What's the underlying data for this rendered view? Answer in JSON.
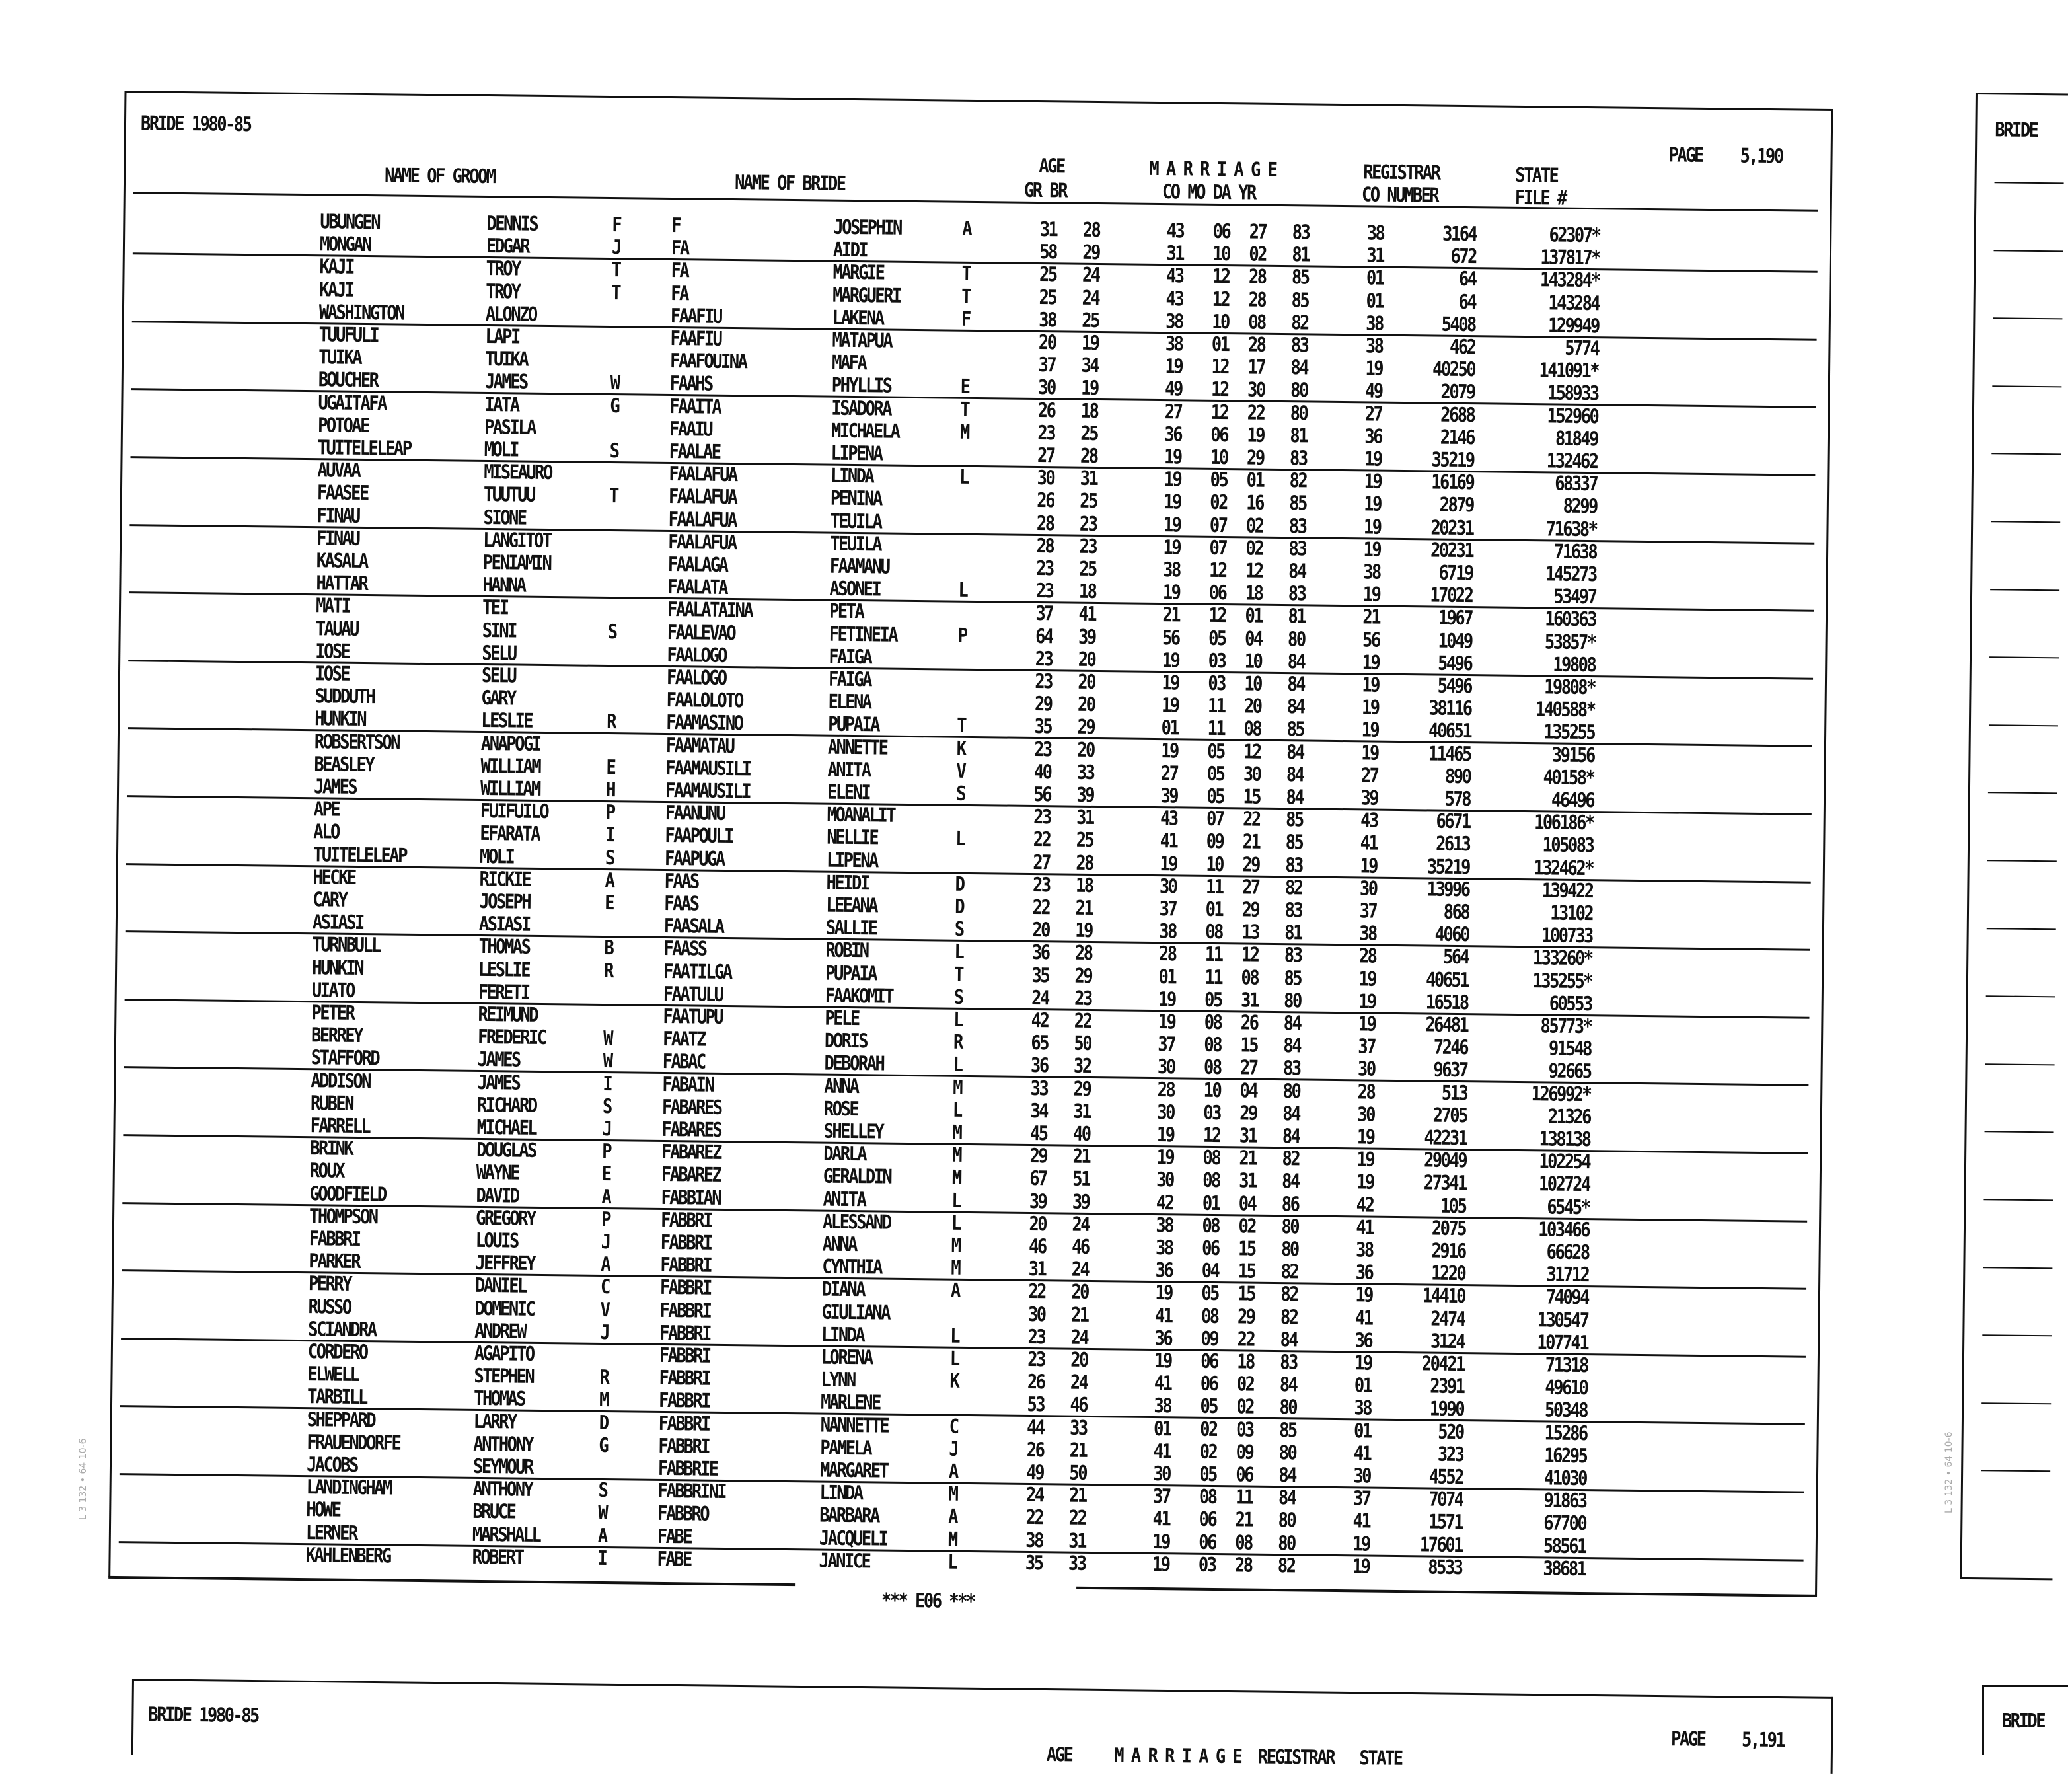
{
  "page1": {
    "title": "BRIDE 1980-85",
    "page_label": "PAGE",
    "page_number": "5,190",
    "headers": {
      "name_of_groom": "NAME OF GROOM",
      "name_of_bride": "NAME OF BRIDE",
      "age": "AGE",
      "gr_br": "GR  BR",
      "marriage": "M A R R I A G E",
      "co_mo_da_yr": "CO  MO DA YR",
      "registrar": "REGISTRAR",
      "co_number": "CO NUMBER",
      "state": "STATE",
      "file_no": "FILE #"
    },
    "footer": "*** E06 ***",
    "rows": [
      [
        "UBUNGEN",
        "DENNIS",
        "F",
        "F",
        "JOSEPHIN",
        "A",
        "31",
        "28",
        "43",
        "06",
        "27",
        "83",
        "38",
        "3164",
        "62307*"
      ],
      [
        "MONGAN",
        "EDGAR",
        "J",
        "FA",
        "AIDI",
        "",
        "58",
        "29",
        "31",
        "10",
        "02",
        "81",
        "31",
        "672",
        "137817*"
      ],
      [
        "KAJI",
        "TROY",
        "T",
        "FA",
        "MARGIE",
        "T",
        "25",
        "24",
        "43",
        "12",
        "28",
        "85",
        "01",
        "64",
        "143284*"
      ],
      [
        "KAJI",
        "TROY",
        "T",
        "FA",
        "MARGUERI",
        "T",
        "25",
        "24",
        "43",
        "12",
        "28",
        "85",
        "01",
        "64",
        "143284"
      ],
      [
        "WASHINGTON",
        "ALONZO",
        "",
        "FAAFIU",
        "LAKENA",
        "F",
        "38",
        "25",
        "38",
        "10",
        "08",
        "82",
        "38",
        "5408",
        "129949"
      ],
      [
        "TUUFULI",
        "LAPI",
        "",
        "FAAFIU",
        "MATAPUA",
        "",
        "20",
        "19",
        "38",
        "01",
        "28",
        "83",
        "38",
        "462",
        "5774"
      ],
      [
        "TUIKA",
        "TUIKA",
        "",
        "FAAFOUINA",
        "MAFA",
        "",
        "37",
        "34",
        "19",
        "12",
        "17",
        "84",
        "19",
        "40250",
        "141091*"
      ],
      [
        "BOUCHER",
        "JAMES",
        "W",
        "FAAHS",
        "PHYLLIS",
        "E",
        "30",
        "19",
        "49",
        "12",
        "30",
        "80",
        "49",
        "2079",
        "158933"
      ],
      [
        "UGAITAFA",
        "IATA",
        "G",
        "FAAITA",
        "ISADORA",
        "T",
        "26",
        "18",
        "27",
        "12",
        "22",
        "80",
        "27",
        "2688",
        "152960"
      ],
      [
        "POTOAE",
        "PASILA",
        "",
        "FAAIU",
        "MICHAELA",
        "M",
        "23",
        "25",
        "36",
        "06",
        "19",
        "81",
        "36",
        "2146",
        "81849"
      ],
      [
        "TUITELELEAP",
        "MOLI",
        "S",
        "FAALAE",
        "LIPENA",
        "",
        "27",
        "28",
        "19",
        "10",
        "29",
        "83",
        "19",
        "35219",
        "132462"
      ],
      [
        "AUVAA",
        "MISEAURO",
        "",
        "FAALAFUA",
        "LINDA",
        "L",
        "30",
        "31",
        "19",
        "05",
        "01",
        "82",
        "19",
        "16169",
        "68337"
      ],
      [
        "FAASEE",
        "TUUTUU",
        "T",
        "FAALAFUA",
        "PENINA",
        "",
        "26",
        "25",
        "19",
        "02",
        "16",
        "85",
        "19",
        "2879",
        "8299"
      ],
      [
        "FINAU",
        "SIONE",
        "",
        "FAALAFUA",
        "TEUILA",
        "",
        "28",
        "23",
        "19",
        "07",
        "02",
        "83",
        "19",
        "20231",
        "71638*"
      ],
      [
        "FINAU",
        "LANGITOT",
        "",
        "FAALAFUA",
        "TEUILA",
        "",
        "28",
        "23",
        "19",
        "07",
        "02",
        "83",
        "19",
        "20231",
        "71638"
      ],
      [
        "KASALA",
        "PENIAMIN",
        "",
        "FAALAGA",
        "FAAMANU",
        "",
        "23",
        "25",
        "38",
        "12",
        "12",
        "84",
        "38",
        "6719",
        "145273"
      ],
      [
        "HATTAR",
        "HANNA",
        "",
        "FAALATA",
        "ASONEI",
        "L",
        "23",
        "18",
        "19",
        "06",
        "18",
        "83",
        "19",
        "17022",
        "53497"
      ],
      [
        "MATI",
        "TEI",
        "",
        "FAALATAINA",
        "PETA",
        "",
        "37",
        "41",
        "21",
        "12",
        "01",
        "81",
        "21",
        "1967",
        "160363"
      ],
      [
        "TAUAU",
        "SINI",
        "S",
        "FAALEVAO",
        "FETINEIA",
        "P",
        "64",
        "39",
        "56",
        "05",
        "04",
        "80",
        "56",
        "1049",
        "53857*"
      ],
      [
        "IOSE",
        "SELU",
        "",
        "FAALOGO",
        "FAIGA",
        "",
        "23",
        "20",
        "19",
        "03",
        "10",
        "84",
        "19",
        "5496",
        "19808"
      ],
      [
        "IOSE",
        "SELU",
        "",
        "FAALOGO",
        "FAIGA",
        "",
        "23",
        "20",
        "19",
        "03",
        "10",
        "84",
        "19",
        "5496",
        "19808*"
      ],
      [
        "SUDDUTH",
        "GARY",
        "",
        "FAALOLOTO",
        "ELENA",
        "",
        "29",
        "20",
        "19",
        "11",
        "20",
        "84",
        "19",
        "38116",
        "140588*"
      ],
      [
        "HUNKIN",
        "LESLIE",
        "R",
        "FAAMASINO",
        "PUPAIA",
        "T",
        "35",
        "29",
        "01",
        "11",
        "08",
        "85",
        "19",
        "40651",
        "135255"
      ],
      [
        "ROBSERTSON",
        "ANAPOGI",
        "",
        "FAAMATAU",
        "ANNETTE",
        "K",
        "23",
        "20",
        "19",
        "05",
        "12",
        "84",
        "19",
        "11465",
        "39156"
      ],
      [
        "BEASLEY",
        "WILLIAM",
        "E",
        "FAAMAUSILI",
        "ANITA",
        "V",
        "40",
        "33",
        "27",
        "05",
        "30",
        "84",
        "27",
        "890",
        "40158*"
      ],
      [
        "JAMES",
        "WILLIAM",
        "H",
        "FAAMAUSILI",
        "ELENI",
        "S",
        "56",
        "39",
        "39",
        "05",
        "15",
        "84",
        "39",
        "578",
        "46496"
      ],
      [
        "APE",
        "FUIFUILO",
        "P",
        "FAANUNU",
        "MOANALIT",
        "",
        "23",
        "31",
        "43",
        "07",
        "22",
        "85",
        "43",
        "6671",
        "106186*"
      ],
      [
        "ALO",
        "EFARATA",
        "I",
        "FAAPOULI",
        "NELLIE",
        "L",
        "22",
        "25",
        "41",
        "09",
        "21",
        "85",
        "41",
        "2613",
        "105083"
      ],
      [
        "TUITELELEAP",
        "MOLI",
        "S",
        "FAAPUGA",
        "LIPENA",
        "",
        "27",
        "28",
        "19",
        "10",
        "29",
        "83",
        "19",
        "35219",
        "132462*"
      ],
      [
        "HECKE",
        "RICKIE",
        "A",
        "FAAS",
        "HEIDI",
        "D",
        "23",
        "18",
        "30",
        "11",
        "27",
        "82",
        "30",
        "13996",
        "139422"
      ],
      [
        "CARY",
        "JOSEPH",
        "E",
        "FAAS",
        "LEEANA",
        "D",
        "22",
        "21",
        "37",
        "01",
        "29",
        "83",
        "37",
        "868",
        "13102"
      ],
      [
        "ASIASI",
        "ASIASI",
        "",
        "FAASALA",
        "SALLIE",
        "S",
        "20",
        "19",
        "38",
        "08",
        "13",
        "81",
        "38",
        "4060",
        "100733"
      ],
      [
        "TURNBULL",
        "THOMAS",
        "B",
        "FAASS",
        "ROBIN",
        "L",
        "36",
        "28",
        "28",
        "11",
        "12",
        "83",
        "28",
        "564",
        "133260*"
      ],
      [
        "HUNKIN",
        "LESLIE",
        "R",
        "FAATILGA",
        "PUPAIA",
        "T",
        "35",
        "29",
        "01",
        "11",
        "08",
        "85",
        "19",
        "40651",
        "135255*"
      ],
      [
        "UIATO",
        "FERETI",
        "",
        "FAATULU",
        "FAAKOMIT",
        "S",
        "24",
        "23",
        "19",
        "05",
        "31",
        "80",
        "19",
        "16518",
        "60553"
      ],
      [
        "PETER",
        "REIMUND",
        "",
        "FAATUPU",
        "PELE",
        "L",
        "42",
        "22",
        "19",
        "08",
        "26",
        "84",
        "19",
        "26481",
        "85773*"
      ],
      [
        "BERREY",
        "FREDERIC",
        "W",
        "FAATZ",
        "DORIS",
        "R",
        "65",
        "50",
        "37",
        "08",
        "15",
        "84",
        "37",
        "7246",
        "91548"
      ],
      [
        "STAFFORD",
        "JAMES",
        "W",
        "FABAC",
        "DEBORAH",
        "L",
        "36",
        "32",
        "30",
        "08",
        "27",
        "83",
        "30",
        "9637",
        "92665"
      ],
      [
        "ADDISON",
        "JAMES",
        "I",
        "FABAIN",
        "ANNA",
        "M",
        "33",
        "29",
        "28",
        "10",
        "04",
        "80",
        "28",
        "513",
        "126992*"
      ],
      [
        "RUBEN",
        "RICHARD",
        "S",
        "FABARES",
        "ROSE",
        "L",
        "34",
        "31",
        "30",
        "03",
        "29",
        "84",
        "30",
        "2705",
        "21326"
      ],
      [
        "FARRELL",
        "MICHAEL",
        "J",
        "FABARES",
        "SHELLEY",
        "M",
        "45",
        "40",
        "19",
        "12",
        "31",
        "84",
        "19",
        "42231",
        "138138"
      ],
      [
        "BRINK",
        "DOUGLAS",
        "P",
        "FABAREZ",
        "DARLA",
        "M",
        "29",
        "21",
        "19",
        "08",
        "21",
        "82",
        "19",
        "29049",
        "102254"
      ],
      [
        "ROUX",
        "WAYNE",
        "E",
        "FABAREZ",
        "GERALDIN",
        "M",
        "67",
        "51",
        "30",
        "08",
        "31",
        "84",
        "19",
        "27341",
        "102724"
      ],
      [
        "GOODFIELD",
        "DAVID",
        "A",
        "FABBIAN",
        "ANITA",
        "L",
        "39",
        "39",
        "42",
        "01",
        "04",
        "86",
        "42",
        "105",
        "6545*"
      ],
      [
        "THOMPSON",
        "GREGORY",
        "P",
        "FABBRI",
        "ALESSAND",
        "L",
        "20",
        "24",
        "38",
        "08",
        "02",
        "80",
        "41",
        "2075",
        "103466"
      ],
      [
        "FABBRI",
        "LOUIS",
        "J",
        "FABBRI",
        "ANNA",
        "M",
        "46",
        "46",
        "38",
        "06",
        "15",
        "80",
        "38",
        "2916",
        "66628"
      ],
      [
        "PARKER",
        "JEFFREY",
        "A",
        "FABBRI",
        "CYNTHIA",
        "M",
        "31",
        "24",
        "36",
        "04",
        "15",
        "82",
        "36",
        "1220",
        "31712"
      ],
      [
        "PERRY",
        "DANIEL",
        "C",
        "FABBRI",
        "DIANA",
        "A",
        "22",
        "20",
        "19",
        "05",
        "15",
        "82",
        "19",
        "14410",
        "74094"
      ],
      [
        "RUSSO",
        "DOMENIC",
        "V",
        "FABBRI",
        "GIULIANA",
        "",
        "30",
        "21",
        "41",
        "08",
        "29",
        "82",
        "41",
        "2474",
        "130547"
      ],
      [
        "SCIANDRA",
        "ANDREW",
        "J",
        "FABBRI",
        "LINDA",
        "L",
        "23",
        "24",
        "36",
        "09",
        "22",
        "84",
        "36",
        "3124",
        "107741"
      ],
      [
        "CORDERO",
        "AGAPITO",
        "",
        "FABBRI",
        "LORENA",
        "L",
        "23",
        "20",
        "19",
        "06",
        "18",
        "83",
        "19",
        "20421",
        "71318"
      ],
      [
        "ELWELL",
        "STEPHEN",
        "R",
        "FABBRI",
        "LYNN",
        "K",
        "26",
        "24",
        "41",
        "06",
        "02",
        "84",
        "01",
        "2391",
        "49610"
      ],
      [
        "TARBILL",
        "THOMAS",
        "M",
        "FABBRI",
        "MARLENE",
        "",
        "53",
        "46",
        "38",
        "05",
        "02",
        "80",
        "38",
        "1990",
        "50348"
      ],
      [
        "SHEPPARD",
        "LARRY",
        "D",
        "FABBRI",
        "NANNETTE",
        "C",
        "44",
        "33",
        "01",
        "02",
        "03",
        "85",
        "01",
        "520",
        "15286"
      ],
      [
        "FRAUENDORFE",
        "ANTHONY",
        "G",
        "FABBRI",
        "PAMELA",
        "J",
        "26",
        "21",
        "41",
        "02",
        "09",
        "80",
        "41",
        "323",
        "16295"
      ],
      [
        "JACOBS",
        "SEYMOUR",
        "",
        "FABBRIE",
        "MARGARET",
        "A",
        "49",
        "50",
        "30",
        "05",
        "06",
        "84",
        "30",
        "4552",
        "41030"
      ],
      [
        "LANDINGHAM",
        "ANTHONY",
        "S",
        "FABBRINI",
        "LINDA",
        "M",
        "24",
        "21",
        "37",
        "08",
        "11",
        "84",
        "37",
        "7074",
        "91863"
      ],
      [
        "HOWE",
        "BRUCE",
        "W",
        "FABBRO",
        "BARBARA",
        "A",
        "22",
        "22",
        "41",
        "06",
        "21",
        "80",
        "41",
        "1571",
        "67700"
      ],
      [
        "LERNER",
        "MARSHALL",
        "A",
        "FABE",
        "JACQUELI",
        "M",
        "38",
        "31",
        "19",
        "06",
        "08",
        "80",
        "19",
        "17601",
        "58561"
      ],
      [
        "KAHLENBERG",
        "ROBERT",
        "I",
        "FABE",
        "JANICE",
        "L",
        "35",
        "33",
        "19",
        "03",
        "28",
        "82",
        "19",
        "8533",
        "38681"
      ]
    ]
  },
  "page2": {
    "title": "BRIDE 1980-85",
    "page_label": "PAGE",
    "page_number": "5,191",
    "partial_header": "AGE     M A R R I A G E  REGISTRAR   STATE"
  },
  "adjacent_page": {
    "title": "BRIDE"
  },
  "margin_stamp": "L 3 132 • 64 10-6"
}
